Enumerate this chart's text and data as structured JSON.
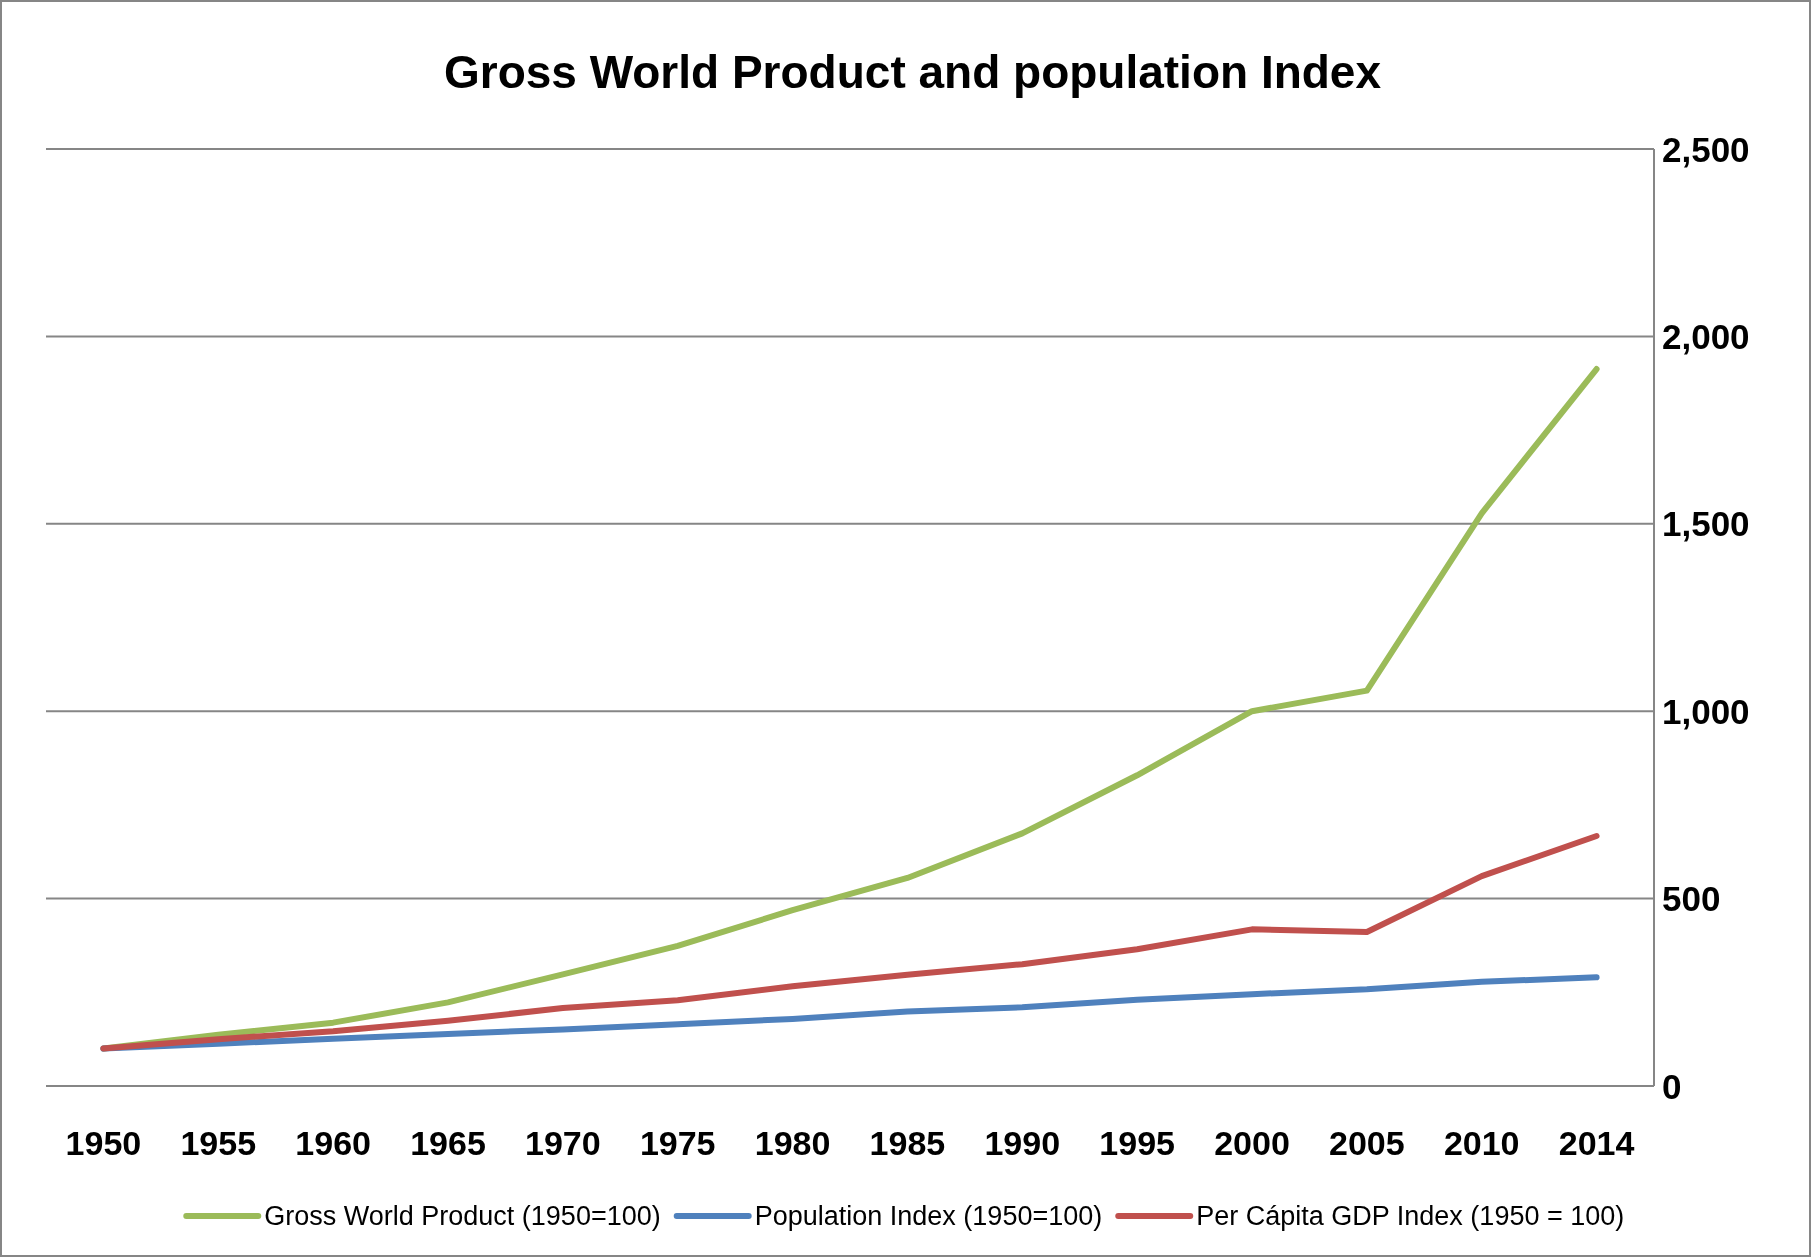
{
  "chart_data": {
    "type": "line",
    "title": "Gross World Product and population Index",
    "categories": [
      "1950",
      "1955",
      "1960",
      "1965",
      "1970",
      "1975",
      "1980",
      "1985",
      "1990",
      "1995",
      "2000",
      "2005",
      "2010",
      "2014"
    ],
    "series": [
      {
        "name": "Gross World Product (1950=100)",
        "color": "#9bbb59",
        "values": [
          100,
          137,
          169,
          223,
          298,
          374,
          469,
          555,
          674,
          829,
          1000,
          1055,
          1528,
          1913
        ]
      },
      {
        "name": "Population Index (1950=100)",
        "color": "#4f81bd",
        "values": [
          100,
          113,
          126,
          139,
          151,
          165,
          179,
          199,
          210,
          230,
          245,
          258,
          278,
          290
        ]
      },
      {
        "name": "Per Cápita GDP Index (1950 = 100)",
        "color": "#c0504d",
        "values": [
          100,
          125,
          146,
          174,
          208,
          229,
          266,
          297,
          325,
          365,
          418,
          411,
          560,
          667
        ]
      }
    ],
    "ylim": [
      0,
      2500
    ],
    "yticks": [
      0,
      500,
      {
        "value": 1000,
        "label": "1,000"
      },
      {
        "value": 1500,
        "label": "1,500"
      },
      {
        "value": 2000,
        "label": "2,000"
      },
      {
        "value": 2500,
        "label": "2,500"
      }
    ],
    "grid": "y",
    "legend": "bottom",
    "line_style": "solid"
  }
}
